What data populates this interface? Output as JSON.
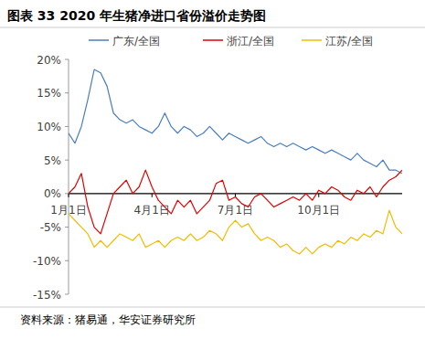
{
  "chart_data": {
    "type": "line",
    "title": "图表 33 2020 年生猪净进口省份溢价走势图",
    "source": "资料来源：猪易通，华安证券研究所",
    "categories": [
      "1月1日",
      null,
      null,
      null,
      null,
      null,
      null,
      null,
      null,
      null,
      null,
      null,
      null,
      "4月1日",
      null,
      null,
      null,
      null,
      null,
      null,
      null,
      null,
      null,
      null,
      null,
      null,
      "7月1日",
      null,
      null,
      null,
      null,
      null,
      null,
      null,
      null,
      null,
      null,
      null,
      null,
      "10月1日",
      null,
      null,
      null,
      null,
      null,
      null,
      null,
      null,
      null,
      null,
      null,
      null,
      null
    ],
    "series": [
      {
        "name": "广东/全国",
        "color": "#4a7ebb",
        "values": [
          9,
          7.5,
          10,
          14,
          18.5,
          18,
          16,
          12,
          11,
          10.5,
          11,
          10,
          9.5,
          9,
          10,
          12,
          10,
          9,
          10,
          9.5,
          8.5,
          9,
          10,
          9,
          8,
          9,
          8.5,
          8,
          7.5,
          8,
          8.5,
          7.5,
          7,
          7.5,
          7,
          7.5,
          7,
          6.5,
          7,
          6.5,
          6,
          6.5,
          6,
          5.5,
          5,
          6,
          5,
          4.5,
          4,
          5,
          3.5,
          3.5,
          3
        ]
      },
      {
        "name": "浙江/全国",
        "color": "#e00000",
        "values": [
          0,
          1,
          3,
          -2,
          -5,
          -6,
          -3,
          0,
          1,
          2,
          0,
          1,
          3.5,
          1,
          -1,
          -2,
          -3,
          -1,
          -2,
          -1,
          -3,
          -2,
          -1,
          1.5,
          2,
          -1,
          -0.5,
          -1.5,
          -2,
          -0.5,
          0,
          -1,
          -2,
          -1.5,
          -1,
          -0.5,
          -1,
          0,
          -1,
          0.5,
          0,
          1,
          0.5,
          -0.5,
          -1,
          0.5,
          0,
          1,
          -0.5,
          1,
          2,
          2.5,
          3.5
        ]
      },
      {
        "name": "江苏/全国",
        "color": "#f2bc00",
        "values": [
          -3,
          -4,
          -5,
          -6,
          -8,
          -7,
          -8,
          -7,
          -6,
          -6.5,
          -7,
          -6,
          -8,
          -7.5,
          -7,
          -8,
          -7,
          -6.5,
          -7,
          -6,
          -7,
          -6.5,
          -5.5,
          -6,
          -7,
          -5,
          -4,
          -5,
          -4.5,
          -6,
          -7,
          -6.5,
          -7,
          -8,
          -7.5,
          -8.5,
          -9,
          -8,
          -9,
          -8,
          -7.5,
          -8,
          -7,
          -7.5,
          -6.5,
          -7,
          -6,
          -6.5,
          -5.5,
          -6,
          -2.5,
          -5,
          -6
        ]
      }
    ],
    "ylim": [
      -15,
      20
    ],
    "yticks": [
      {
        "value": -15,
        "label": "-15%"
      },
      {
        "value": -10,
        "label": "-10%"
      },
      {
        "value": -5,
        "label": "-5%"
      },
      {
        "value": 0,
        "label": "0%"
      },
      {
        "value": 5,
        "label": "5%"
      },
      {
        "value": 10,
        "label": "10%"
      },
      {
        "value": 15,
        "label": "15%"
      },
      {
        "value": 20,
        "label": "20%"
      }
    ],
    "grid": false,
    "legend": "top"
  }
}
